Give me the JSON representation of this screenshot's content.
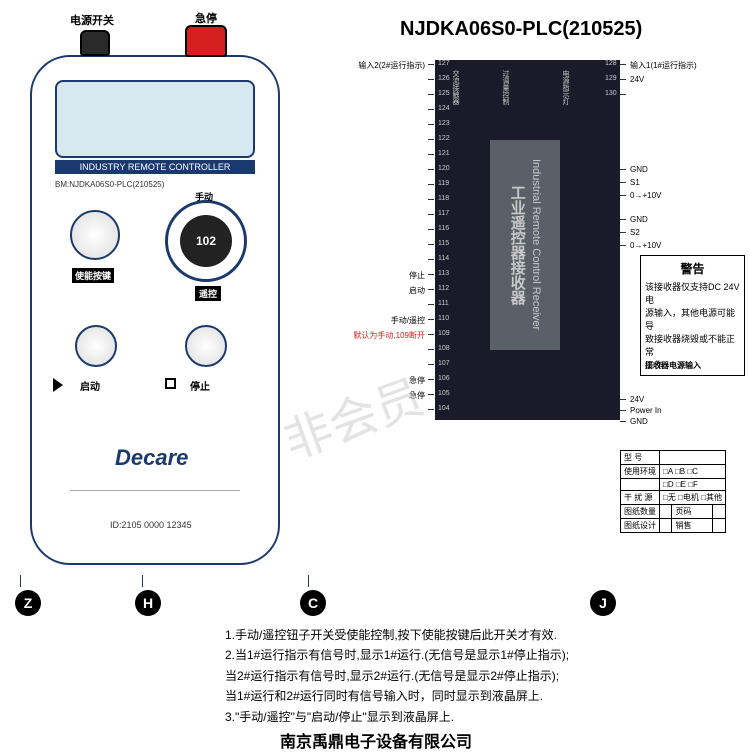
{
  "title": "NJDKA06S0-PLC(210525)",
  "watermark": "非会员",
  "remote": {
    "top_labels": {
      "power": "电源开关",
      "estop": "急停"
    },
    "top_btn_colors": {
      "power": "#2a2a2a",
      "estop": "#d62020"
    },
    "lcd_band": "INDUSTRY REMOTE CONTROLLER",
    "model": "BM:NJDKA06S0-PLC(210525)",
    "knob_top": "手动",
    "knob_value": "102",
    "knob_bottom": "遥控",
    "labels": {
      "enable": "使能按键",
      "start": "启动",
      "stop": "停止"
    },
    "logo": "Decare",
    "id": "ID:2105 0000 12345"
  },
  "plc": {
    "inner_text_en": "Industrial Remote Control Receiver",
    "inner_text_cn": "工业遥控器接收器",
    "left_pins": [
      {
        "num": "127",
        "label": "输入2(2#运行指示)"
      },
      {
        "num": "126"
      },
      {
        "num": "125"
      },
      {
        "num": "124"
      },
      {
        "num": "123"
      },
      {
        "num": "122"
      },
      {
        "num": "121"
      },
      {
        "num": "120"
      },
      {
        "num": "119"
      },
      {
        "num": "118"
      },
      {
        "num": "117"
      },
      {
        "num": "116"
      },
      {
        "num": "115"
      },
      {
        "num": "114"
      },
      {
        "num": "113",
        "label": "停止"
      },
      {
        "num": "112",
        "label": "启动"
      },
      {
        "num": "111"
      },
      {
        "num": "110",
        "label": "手动/遥控"
      },
      {
        "num": "109",
        "label": "默认为手动,109断开",
        "red": true
      },
      {
        "num": "108"
      },
      {
        "num": "107"
      },
      {
        "num": "106",
        "label": "急停"
      },
      {
        "num": "105",
        "label": "急停"
      },
      {
        "num": "104"
      }
    ],
    "right_pins": [
      {
        "num": "128",
        "label": "输入1(1#运行指示)"
      },
      {
        "num": "129",
        "label": "24V"
      },
      {
        "num": "130"
      },
      {
        "label": "GND"
      },
      {
        "label": "S1"
      },
      {
        "label": "0→+10V"
      },
      {
        "label": "GND"
      },
      {
        "label": "S2"
      },
      {
        "label": "0→+10V"
      },
      {
        "label": "24V"
      },
      {
        "label": "Power In"
      },
      {
        "label": "GND"
      }
    ],
    "top_labels": [
      "交流接触器",
      "过调量控制",
      "电源指示灯"
    ]
  },
  "warning": {
    "title": "警告",
    "lines": [
      "该接收器仅支持DC 24V电",
      "源输入，其他电源可能导",
      "致接收器烧毁或不能正常",
      "工作"
    ],
    "footer": "接收器电源输入"
  },
  "spec": {
    "rows": [
      [
        "型 号",
        ""
      ],
      [
        "使用环境",
        "□A  □B  □C"
      ],
      [
        "",
        "□D  □E  □F"
      ],
      [
        "干 扰 源",
        "□无 □电机 □其他"
      ],
      [
        "图纸数量",
        "",
        "页码",
        ""
      ],
      [
        "图纸设计",
        "",
        "销售",
        ""
      ]
    ]
  },
  "letters": [
    "Z",
    "H",
    "C",
    "J"
  ],
  "notes": [
    "1.手动/遥控钮子开关受使能控制,按下使能按键后此开关才有效.",
    "2.当1#运行指示有信号时,显示1#运行.(无信号是显示1#停止指示);",
    "  当2#运行指示有信号时,显示2#运行.(无信号是显示2#停止指示);",
    "  当1#运行和2#运行同时有信号输入时，同时显示到液晶屏上.",
    "3.\"手动/遥控\"与\"启动/停止\"显示到液晶屏上."
  ],
  "footer": "南京禹鼎电子设备有限公司",
  "colors": {
    "outline": "#1a3a6e",
    "plc_bg": "#1a1a2a",
    "plc_inner": "#5a6068"
  }
}
